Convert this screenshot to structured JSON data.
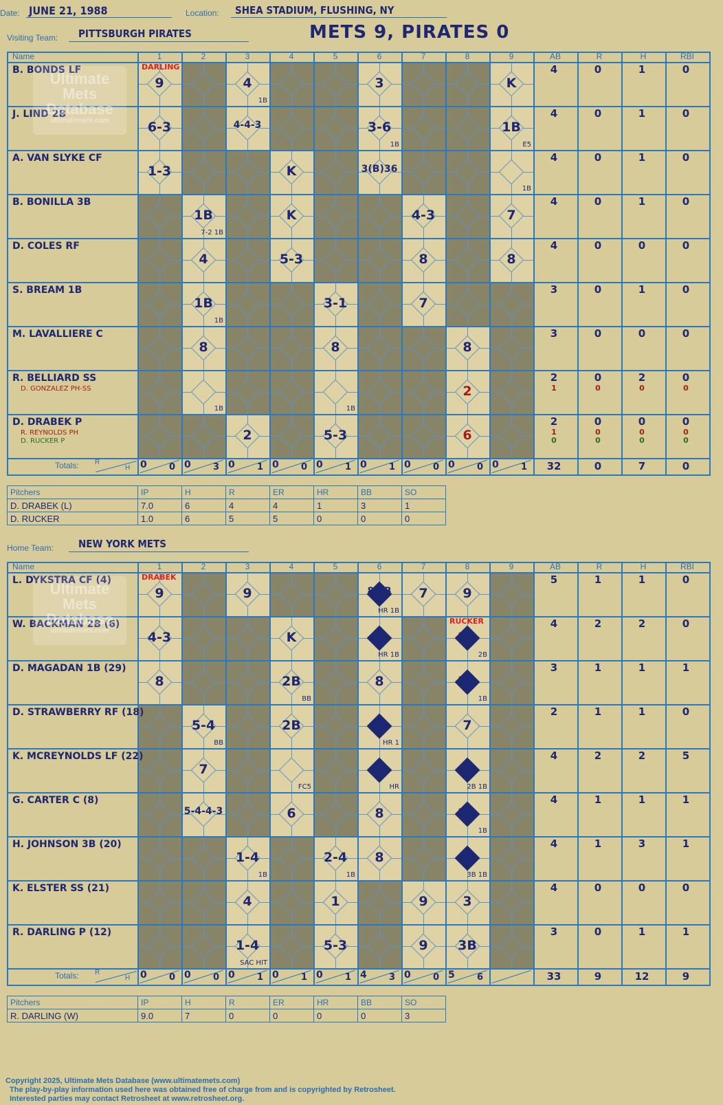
{
  "header": {
    "date_label": "Date:",
    "date": "JUNE 21, 1988",
    "location_label": "Location:",
    "location": "SHEA STADIUM, FLUSHING, NY",
    "visiting_label": "Visiting Team:",
    "visiting_team": "PITTSBURGH PIRATES",
    "headline": "METS 9, PIRATES 0",
    "home_label": "Home Team:",
    "home_team": "NEW YORK METS"
  },
  "columns": {
    "name": "Name",
    "innings": [
      "1",
      "2",
      "3",
      "4",
      "5",
      "6",
      "7",
      "8",
      "9"
    ],
    "stats": [
      "AB",
      "R",
      "H",
      "RBI"
    ],
    "totals": "Totals:",
    "r": "R",
    "h": "H"
  },
  "watermark": {
    "line1": "Ultimate",
    "line2": "Mets",
    "line3": "Database",
    "url": "ultimatemets.com"
  },
  "visitors": {
    "players": [
      {
        "name": "B. BONDS LF",
        "stats": [
          "4",
          "0",
          "1",
          "0"
        ]
      },
      {
        "name": "J. LIND 2B",
        "stats": [
          "4",
          "0",
          "1",
          "0"
        ]
      },
      {
        "name": "A. VAN SLYKE CF",
        "stats": [
          "4",
          "0",
          "1",
          "0"
        ]
      },
      {
        "name": "B. BONILLA 3B",
        "stats": [
          "4",
          "0",
          "1",
          "0"
        ]
      },
      {
        "name": "D. COLES RF",
        "stats": [
          "4",
          "0",
          "0",
          "0"
        ]
      },
      {
        "name": "S. BREAM 1B",
        "stats": [
          "3",
          "0",
          "1",
          "0"
        ]
      },
      {
        "name": "M. LAVALLIERE C",
        "stats": [
          "3",
          "0",
          "0",
          "0"
        ]
      },
      {
        "name": "R. BELLIARD SS",
        "subs": [
          "D. GONZALEZ PH-SS"
        ],
        "stats": [
          "2",
          "0",
          "2",
          "0"
        ],
        "sub_stats": [
          [
            "1",
            "0",
            "0",
            "0"
          ]
        ]
      },
      {
        "name": "D. DRABEK P",
        "subs": [
          "R. REYNOLDS PH",
          "D. RUCKER P"
        ],
        "stats": [
          "2",
          "0",
          "0",
          "0"
        ],
        "sub_stats": [
          [
            "1",
            "0",
            "0",
            "0"
          ],
          [
            "0",
            "0",
            "0",
            "0"
          ]
        ]
      }
    ],
    "plays": [
      {
        "r": 0,
        "i": 1,
        "t": "9"
      },
      {
        "r": 0,
        "i": 3,
        "t": "4",
        "x": "1B"
      },
      {
        "r": 0,
        "i": 6,
        "t": "3"
      },
      {
        "r": 0,
        "i": 9,
        "t": "K"
      },
      {
        "r": 1,
        "i": 1,
        "t": "6-3"
      },
      {
        "r": 1,
        "i": 3,
        "t": "4-4-3"
      },
      {
        "r": 1,
        "i": 6,
        "t": "3-6",
        "x": "1B"
      },
      {
        "r": 1,
        "i": 9,
        "t": "1B",
        "x": "E5"
      },
      {
        "r": 2,
        "i": 1,
        "t": "1-3"
      },
      {
        "r": 2,
        "i": 4,
        "t": "K"
      },
      {
        "r": 2,
        "i": 6,
        "t": "3(B)36"
      },
      {
        "r": 2,
        "i": 9,
        "t": "",
        "x": "1B"
      },
      {
        "r": 3,
        "i": 2,
        "t": "1B",
        "x": "7-2  1B"
      },
      {
        "r": 3,
        "i": 4,
        "t": "K"
      },
      {
        "r": 3,
        "i": 7,
        "t": "4-3"
      },
      {
        "r": 3,
        "i": 9,
        "t": "7"
      },
      {
        "r": 4,
        "i": 2,
        "t": "4"
      },
      {
        "r": 4,
        "i": 4,
        "t": "5-3"
      },
      {
        "r": 4,
        "i": 7,
        "t": "8"
      },
      {
        "r": 4,
        "i": 9,
        "t": "8"
      },
      {
        "r": 5,
        "i": 2,
        "t": "1B",
        "x": "1B"
      },
      {
        "r": 5,
        "i": 5,
        "t": "3-1"
      },
      {
        "r": 5,
        "i": 7,
        "t": "7"
      },
      {
        "r": 6,
        "i": 2,
        "t": "8"
      },
      {
        "r": 6,
        "i": 5,
        "t": "8"
      },
      {
        "r": 6,
        "i": 8,
        "t": "8"
      },
      {
        "r": 7,
        "i": 2,
        "t": "",
        "x": "1B"
      },
      {
        "r": 7,
        "i": 5,
        "t": "",
        "x": "1B"
      },
      {
        "r": 7,
        "i": 8,
        "t": "2",
        "red": true
      },
      {
        "r": 8,
        "i": 3,
        "t": "2"
      },
      {
        "r": 8,
        "i": 5,
        "t": "5-3"
      },
      {
        "r": 8,
        "i": 8,
        "t": "6",
        "red": true
      }
    ],
    "pitcher_note": "DARLING",
    "totals": [
      [
        "0",
        "0"
      ],
      [
        "0",
        "3"
      ],
      [
        "0",
        "1"
      ],
      [
        "0",
        "0"
      ],
      [
        "0",
        "1"
      ],
      [
        "0",
        "1"
      ],
      [
        "0",
        "0"
      ],
      [
        "0",
        "0"
      ],
      [
        "0",
        "1"
      ]
    ],
    "total_stats": [
      "32",
      "0",
      "7",
      "0"
    ]
  },
  "visitor_pitchers": {
    "headers": [
      "Pitchers",
      "IP",
      "H",
      "R",
      "ER",
      "HR",
      "BB",
      "SO"
    ],
    "rows": [
      [
        "D. DRABEK (L)",
        "7.0",
        "6",
        "4",
        "4",
        "1",
        "3",
        "1"
      ],
      [
        "D. RUCKER",
        "1.0",
        "6",
        "5",
        "5",
        "0",
        "0",
        "0"
      ]
    ]
  },
  "home": {
    "players": [
      {
        "name": "L. DYKSTRA CF (4)",
        "stats": [
          "5",
          "1",
          "1",
          "0"
        ]
      },
      {
        "name": "W. BACKMAN 2B (6)",
        "stats": [
          "4",
          "2",
          "2",
          "0"
        ]
      },
      {
        "name": "D. MAGADAN 1B (29)",
        "stats": [
          "3",
          "1",
          "1",
          "1"
        ]
      },
      {
        "name": "D. STRAWBERRY RF (18)",
        "stats": [
          "2",
          "1",
          "1",
          "0"
        ]
      },
      {
        "name": "K. MCREYNOLDS LF (22)",
        "stats": [
          "4",
          "2",
          "2",
          "5"
        ]
      },
      {
        "name": "G. CARTER C (8)",
        "stats": [
          "4",
          "1",
          "1",
          "1"
        ]
      },
      {
        "name": "H. JOHNSON 3B (20)",
        "stats": [
          "4",
          "1",
          "3",
          "1"
        ]
      },
      {
        "name": "K. ELSTER SS (21)",
        "stats": [
          "4",
          "0",
          "0",
          "0"
        ]
      },
      {
        "name": "R. DARLING P (12)",
        "stats": [
          "3",
          "0",
          "1",
          "1"
        ]
      }
    ],
    "plays": [
      {
        "r": 0,
        "i": 1,
        "t": "9"
      },
      {
        "r": 0,
        "i": 3,
        "t": "9"
      },
      {
        "r": 0,
        "i": 6,
        "t": "8  1B",
        "x": "HR 1B",
        "run": true
      },
      {
        "r": 0,
        "i": 7,
        "t": "7"
      },
      {
        "r": 0,
        "i": 8,
        "t": "9"
      },
      {
        "r": 1,
        "i": 1,
        "t": "4-3"
      },
      {
        "r": 1,
        "i": 4,
        "t": "K"
      },
      {
        "r": 1,
        "i": 6,
        "t": "",
        "x": "HR 1B",
        "run": true
      },
      {
        "r": 1,
        "i": 8,
        "t": "2B",
        "x": "2B",
        "run": true
      },
      {
        "r": 2,
        "i": 1,
        "t": "8"
      },
      {
        "r": 2,
        "i": 4,
        "t": "2B",
        "x": "BB"
      },
      {
        "r": 2,
        "i": 6,
        "t": "8"
      },
      {
        "r": 2,
        "i": 8,
        "t": "2B",
        "x": "1B",
        "run": true
      },
      {
        "r": 3,
        "i": 2,
        "t": "5-4",
        "x": "BB"
      },
      {
        "r": 3,
        "i": 4,
        "t": "2B"
      },
      {
        "r": 3,
        "i": 6,
        "t": "",
        "x": "HR 1",
        "run": true
      },
      {
        "r": 3,
        "i": 8,
        "t": "7"
      },
      {
        "r": 4,
        "i": 2,
        "t": "7"
      },
      {
        "r": 4,
        "i": 4,
        "t": "",
        "x": "FC5"
      },
      {
        "r": 4,
        "i": 6,
        "t": "",
        "x": "HR",
        "run": true
      },
      {
        "r": 4,
        "i": 8,
        "t": "",
        "x": "2B 1B",
        "run": true
      },
      {
        "r": 5,
        "i": 2,
        "t": "5-4-4-3"
      },
      {
        "r": 5,
        "i": 4,
        "t": "6"
      },
      {
        "r": 5,
        "i": 6,
        "t": "8"
      },
      {
        "r": 5,
        "i": 8,
        "t": "2B",
        "x": "1B",
        "run": true
      },
      {
        "r": 6,
        "i": 3,
        "t": "1-4",
        "x": "1B"
      },
      {
        "r": 6,
        "i": 5,
        "t": "2-4",
        "x": "1B"
      },
      {
        "r": 6,
        "i": 6,
        "t": "8"
      },
      {
        "r": 6,
        "i": 8,
        "t": "",
        "x": "3B 1B",
        "run": true
      },
      {
        "r": 7,
        "i": 3,
        "t": "4"
      },
      {
        "r": 7,
        "i": 5,
        "t": "1"
      },
      {
        "r": 7,
        "i": 7,
        "t": "9"
      },
      {
        "r": 7,
        "i": 8,
        "t": "3"
      },
      {
        "r": 8,
        "i": 3,
        "t": "1-4",
        "x": "SAC HIT"
      },
      {
        "r": 8,
        "i": 5,
        "t": "5-3"
      },
      {
        "r": 8,
        "i": 7,
        "t": "9"
      },
      {
        "r": 8,
        "i": 8,
        "t": "3B"
      }
    ],
    "pitcher_note": "DRABEK",
    "pitcher_note2": "RUCKER",
    "totals": [
      [
        "0",
        "0"
      ],
      [
        "0",
        "0"
      ],
      [
        "0",
        "1"
      ],
      [
        "0",
        "1"
      ],
      [
        "0",
        "1"
      ],
      [
        "4",
        "3"
      ],
      [
        "0",
        "0"
      ],
      [
        "5",
        "6"
      ],
      [
        "",
        ""
      ]
    ],
    "total_stats": [
      "33",
      "9",
      "12",
      "9"
    ]
  },
  "home_pitchers": {
    "headers": [
      "Pitchers",
      "IP",
      "H",
      "R",
      "ER",
      "HR",
      "BB",
      "SO"
    ],
    "rows": [
      [
        "R. DARLING (W)",
        "9.0",
        "7",
        "0",
        "0",
        "0",
        "0",
        "3"
      ]
    ]
  },
  "footer": {
    "line1": "Copyright 2025, Ultimate Mets Database (www.ultimatemets.com)",
    "line2": "The play-by-play information used here was obtained free of charge from and is copyrighted by Retrosheet.",
    "line3": "Interested parties may contact Retrosheet at www.retrosheet.org."
  }
}
